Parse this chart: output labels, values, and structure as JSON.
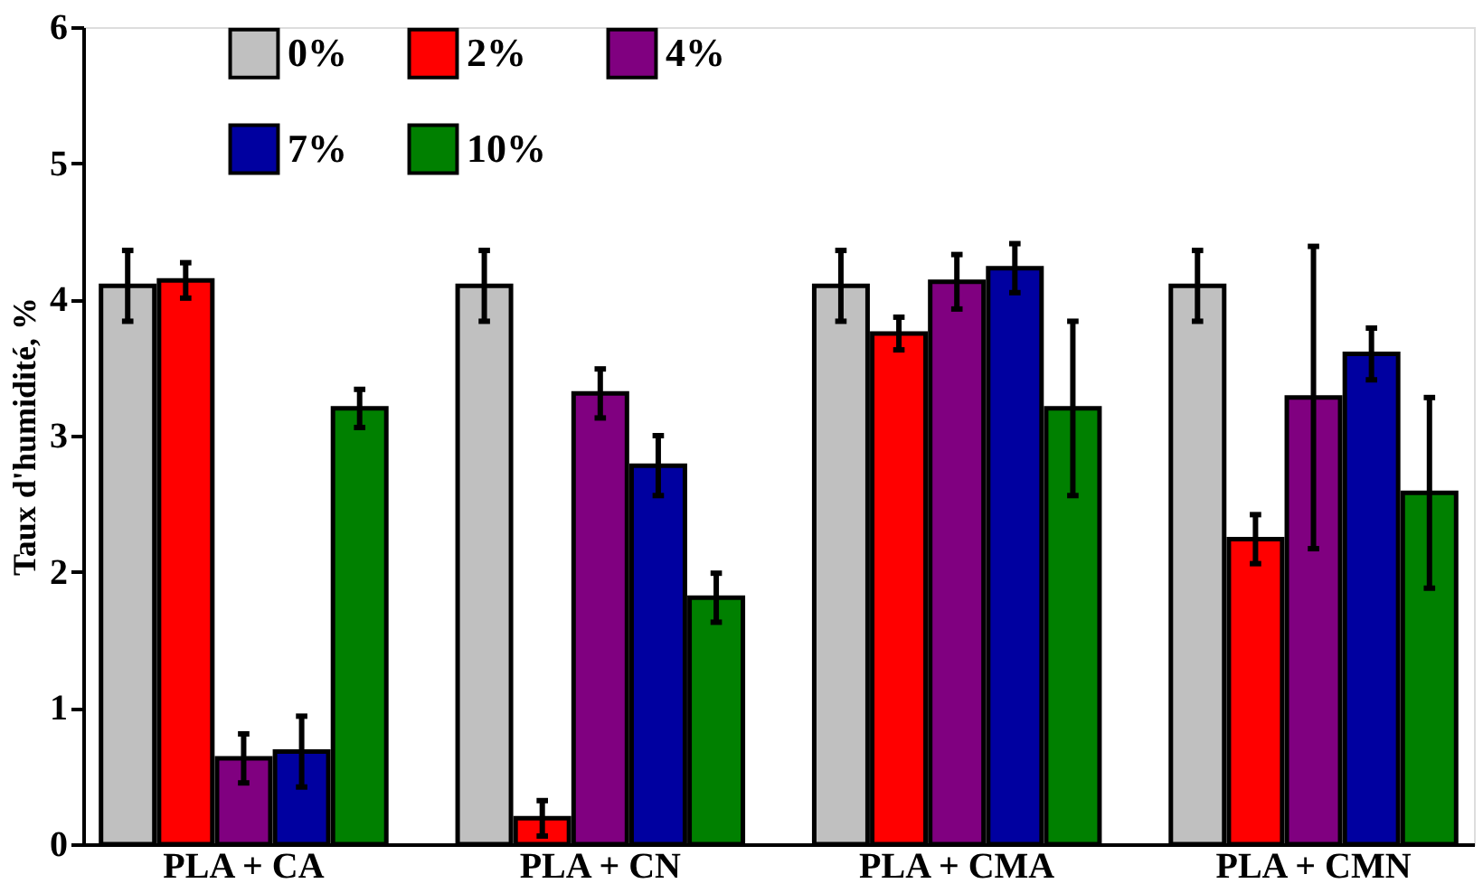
{
  "chart_data": {
    "type": "bar",
    "ylabel": "Taux d'humidité, %",
    "categories": [
      "PLA + CA",
      "PLA + CN",
      "PLA + CMA",
      "PLA + CMN"
    ],
    "series": [
      {
        "name": "0%",
        "color": "#c0c0c0",
        "values": [
          4.1,
          4.1,
          4.1,
          4.1
        ],
        "errors": [
          0.26,
          0.26,
          0.26,
          0.26
        ]
      },
      {
        "name": "2%",
        "color": "#ff0000",
        "values": [
          4.14,
          0.19,
          3.75,
          2.24
        ],
        "errors": [
          0.13,
          0.13,
          0.12,
          0.18
        ]
      },
      {
        "name": "4%",
        "color": "#800080",
        "values": [
          0.63,
          3.31,
          4.13,
          3.28
        ],
        "errors": [
          0.18,
          0.18,
          0.2,
          1.11
        ]
      },
      {
        "name": "7%",
        "color": "#0000a0",
        "values": [
          0.68,
          2.78,
          4.23,
          3.6
        ],
        "errors": [
          0.26,
          0.22,
          0.18,
          0.19
        ]
      },
      {
        "name": "10%",
        "color": "#008000",
        "values": [
          3.2,
          1.81,
          3.2,
          2.58
        ],
        "errors": [
          0.14,
          0.18,
          0.64,
          0.7
        ]
      }
    ],
    "ylim": [
      0,
      6
    ],
    "yticks": [
      0,
      1,
      2,
      3,
      4,
      5,
      6
    ],
    "grid": false,
    "legend": "top left"
  }
}
